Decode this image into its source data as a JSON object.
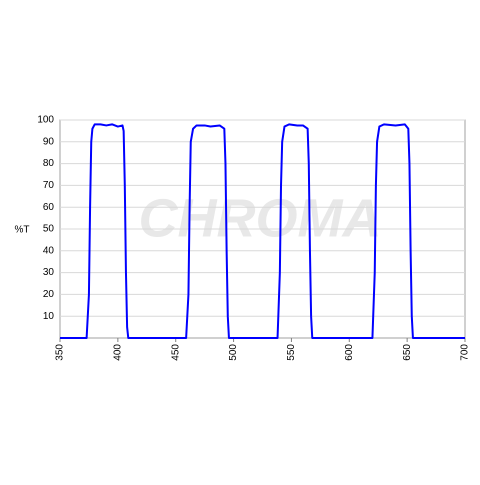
{
  "chart_data": {
    "type": "line",
    "watermark": "CHROMA",
    "y_label": "%T",
    "x": [
      350,
      373,
      375,
      376,
      377,
      378,
      380,
      385,
      390,
      395,
      400,
      404,
      405,
      406,
      407,
      408,
      409,
      459,
      461,
      462,
      463,
      465,
      468,
      475,
      480,
      488,
      492,
      493,
      494,
      495,
      496,
      538,
      540,
      541,
      542,
      544,
      548,
      555,
      560,
      564,
      565,
      566,
      567,
      568,
      620,
      622,
      623,
      624,
      626,
      630,
      640,
      648,
      651,
      652,
      653,
      654,
      655,
      700
    ],
    "series": [
      {
        "color": "#0000ff",
        "values": [
          0,
          0,
          20,
          60,
          90,
          96,
          98,
          98,
          97.5,
          98,
          97,
          97.5,
          95,
          70,
          30,
          5,
          0,
          0,
          20,
          60,
          90,
          96,
          97.5,
          97.5,
          97,
          97.5,
          96,
          80,
          40,
          10,
          0,
          0,
          30,
          70,
          90,
          97,
          98,
          97.5,
          97.5,
          96,
          80,
          40,
          10,
          0,
          0,
          30,
          70,
          90,
          97,
          98,
          97.5,
          98,
          96,
          80,
          40,
          10,
          0,
          0
        ]
      }
    ],
    "xlim": [
      350,
      700
    ],
    "xticks": [
      350,
      400,
      450,
      500,
      550,
      600,
      650,
      700
    ],
    "ylim": [
      0,
      100
    ],
    "yticks": [
      10,
      20,
      30,
      40,
      50,
      60,
      70,
      80,
      90,
      100
    ],
    "grid": true
  }
}
